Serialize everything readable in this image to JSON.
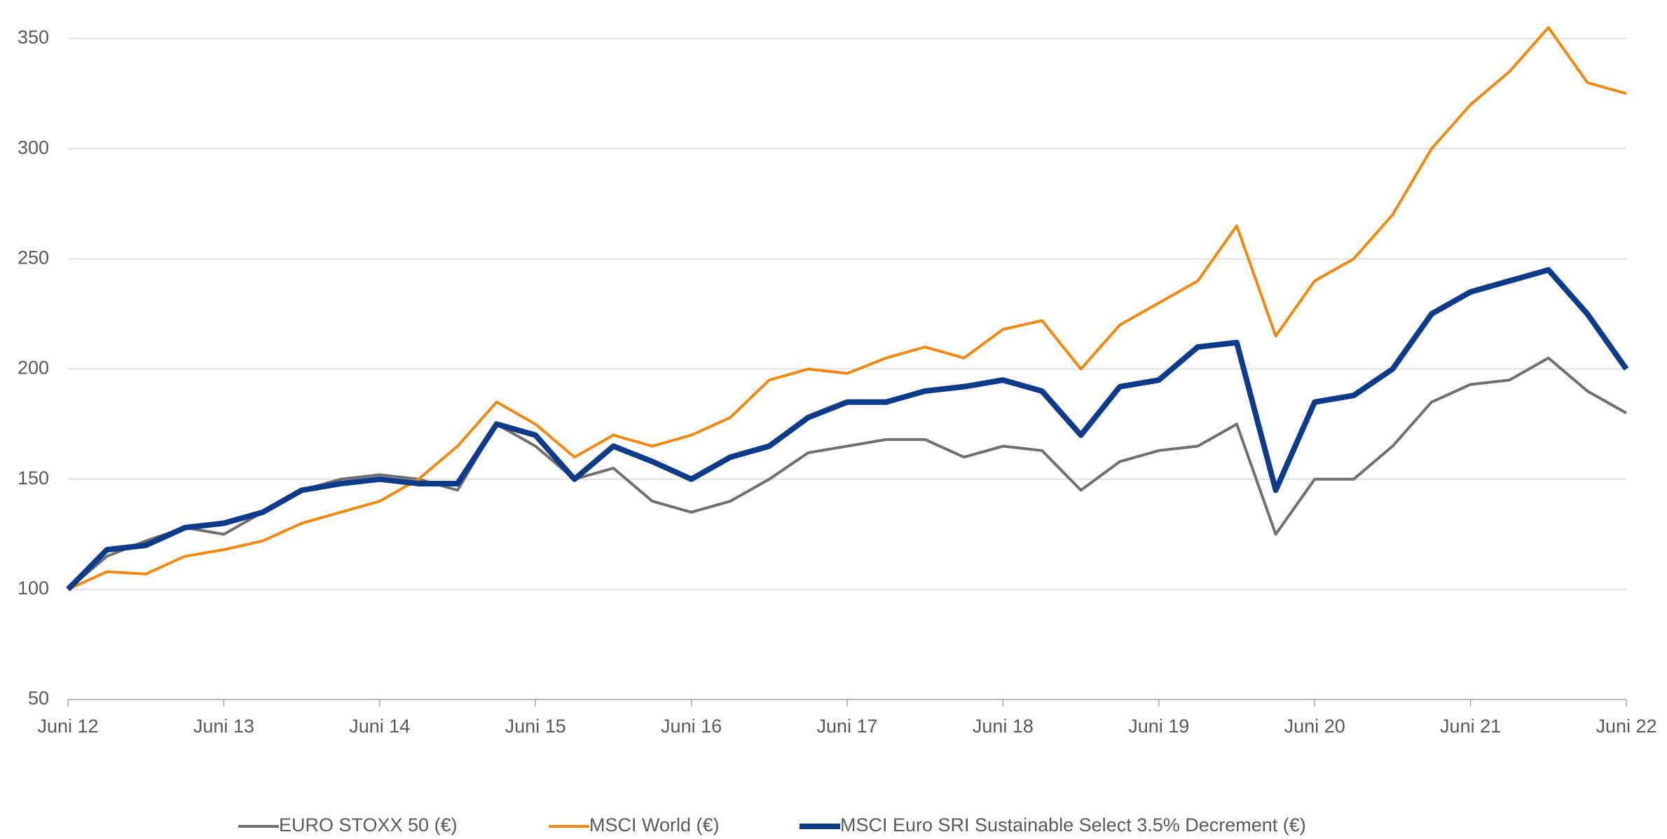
{
  "chart_data": {
    "type": "line",
    "categories": [
      "Juni 12",
      null,
      null,
      null,
      "Juni 13",
      null,
      null,
      null,
      "Juni 14",
      null,
      null,
      null,
      "Juni 15",
      null,
      null,
      null,
      "Juni 16",
      null,
      null,
      null,
      "Juni 17",
      null,
      null,
      null,
      "Juni 18",
      null,
      null,
      null,
      "Juni 19",
      null,
      null,
      null,
      "Juni 20",
      null,
      null,
      null,
      "Juni 21",
      null,
      null,
      null,
      "Juni 22"
    ],
    "series": [
      {
        "name": "EURO STOXX 50 (€)",
        "color": "#6f6f6f",
        "values": [
          100,
          115,
          122,
          128,
          125,
          135,
          145,
          150,
          152,
          150,
          145,
          175,
          165,
          150,
          155,
          140,
          135,
          140,
          150,
          162,
          165,
          168,
          168,
          160,
          165,
          163,
          145,
          158,
          163,
          165,
          175,
          125,
          150,
          150,
          165,
          185,
          193,
          195,
          205,
          190,
          180
        ]
      },
      {
        "name": "MSCI World (€)",
        "color": "#ee8a12",
        "values": [
          100,
          108,
          107,
          115,
          118,
          122,
          130,
          135,
          140,
          150,
          165,
          185,
          175,
          160,
          170,
          165,
          170,
          178,
          195,
          200,
          198,
          205,
          210,
          205,
          218,
          222,
          200,
          220,
          230,
          240,
          265,
          215,
          240,
          250,
          270,
          300,
          320,
          335,
          355,
          330,
          325
        ]
      },
      {
        "name": "MSCI Euro SRI Sustainable Select 3.5% Decrement (€)",
        "color": "#0e3a8a",
        "values": [
          100,
          118,
          120,
          128,
          130,
          135,
          145,
          148,
          150,
          148,
          148,
          175,
          170,
          150,
          165,
          158,
          150,
          160,
          165,
          178,
          185,
          185,
          190,
          192,
          195,
          190,
          170,
          192,
          195,
          210,
          212,
          145,
          185,
          188,
          200,
          225,
          235,
          240,
          245,
          225,
          200
        ]
      }
    ],
    "ylim": [
      50,
      350
    ],
    "yticks": [
      50,
      100,
      150,
      200,
      250,
      300,
      350
    ],
    "grid": true,
    "legend": "bottom"
  }
}
